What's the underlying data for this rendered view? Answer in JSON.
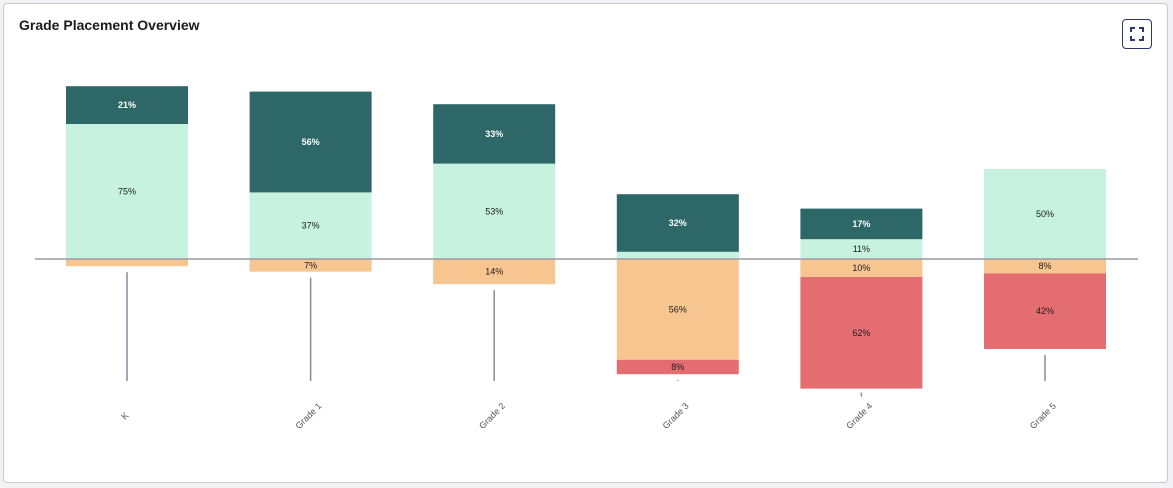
{
  "header": {
    "title": "Grade Placement Overview"
  },
  "toolbar": {
    "expand_icon": "expand-icon"
  },
  "colors": {
    "above_far": "#2d6767",
    "above_near": "#c6f2df",
    "below_near": "#f7c590",
    "below_far": "#e46d72",
    "baseline": "#9a9aa4",
    "whisker": "#8a8a96"
  },
  "chart_data": {
    "type": "bar",
    "categories": [
      "K",
      "Grade 1",
      "Grade 2",
      "Grade 3",
      "Grade 4",
      "Grade 5"
    ],
    "series": [
      {
        "key": "above_far",
        "values": [
          21,
          56,
          33,
          32,
          17,
          0
        ],
        "labels": [
          "21%",
          "56%",
          "33%",
          "32%",
          "17%",
          ""
        ]
      },
      {
        "key": "above_near",
        "values": [
          75,
          37,
          53,
          4,
          11,
          50
        ],
        "labels": [
          "75%",
          "37%",
          "53%",
          "",
          "11%",
          "50%"
        ]
      },
      {
        "key": "below_near",
        "values": [
          4,
          7,
          14,
          56,
          10,
          8
        ],
        "labels": [
          "",
          "7%",
          "14%",
          "56%",
          "10%",
          "8%"
        ]
      },
      {
        "key": "below_far",
        "values": [
          0,
          0,
          0,
          8,
          62,
          42
        ],
        "labels": [
          "",
          "",
          "",
          "8%",
          "62%",
          "42%"
        ]
      }
    ],
    "ylim": [
      -72,
      100
    ],
    "grid": false,
    "legend": "none"
  }
}
